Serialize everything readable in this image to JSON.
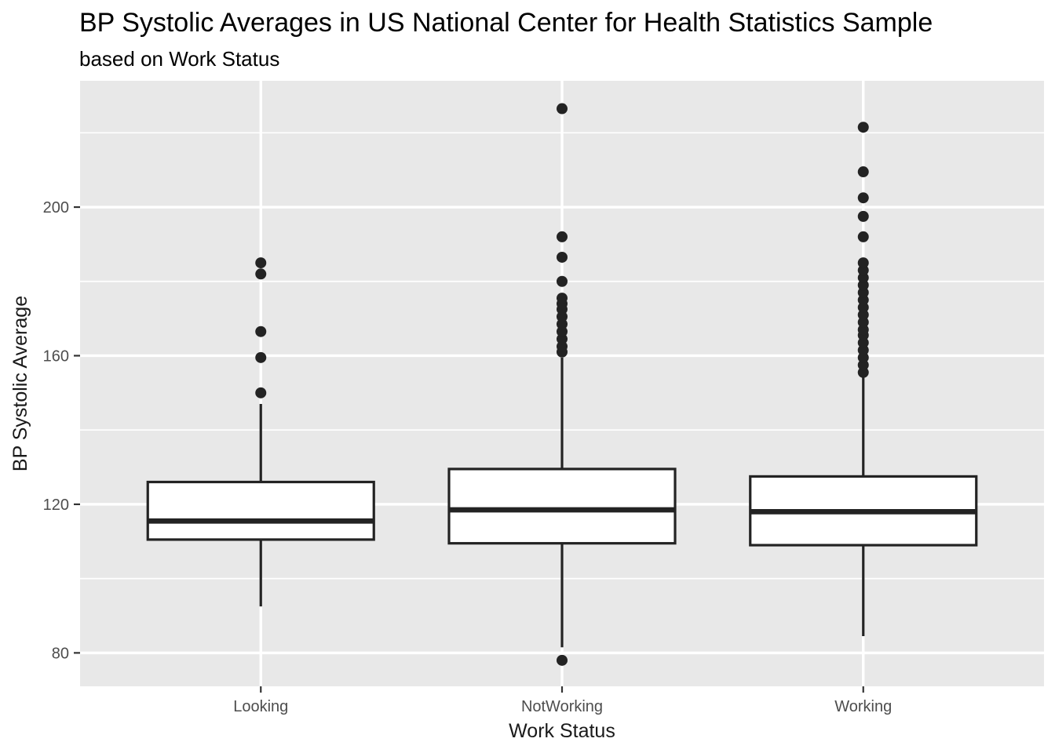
{
  "chart_data": {
    "type": "boxplot",
    "title": "BP Systolic Averages in US National Center for Health Statistics Sample",
    "subtitle": "based on Work Status",
    "xlabel": "Work Status",
    "ylabel": "BP Systolic Average",
    "categories": [
      "Looking",
      "NotWorking",
      "Working"
    ],
    "ylim": [
      71,
      234
    ],
    "y_major_ticks": [
      80,
      120,
      160,
      200
    ],
    "y_minor_gridlines": [
      100,
      140,
      180,
      220
    ],
    "grid": "white major+minor horizontal lines and major vertical lines on grey panel",
    "legend_position": "none",
    "series": [
      {
        "category": "Looking",
        "whisker_low": 92.5,
        "q1": 110.5,
        "median": 115.5,
        "q3": 126,
        "whisker_high": 147,
        "outliers": [
          150,
          159.5,
          166.5,
          182,
          185
        ]
      },
      {
        "category": "NotWorking",
        "whisker_low": 81.5,
        "q1": 109.5,
        "median": 118.5,
        "q3": 129.5,
        "whisker_high": 159.5,
        "outliers": [
          78,
          161,
          162.5,
          164.5,
          166.5,
          168.5,
          170.5,
          172.5,
          174,
          175.5,
          180,
          186.5,
          192,
          226.5
        ]
      },
      {
        "category": "Working",
        "whisker_low": 84.5,
        "q1": 109,
        "median": 118,
        "q3": 127.5,
        "whisker_high": 154.5,
        "outliers": [
          155.5,
          157.5,
          159.5,
          161.5,
          163.5,
          165.5,
          167,
          169,
          171,
          173,
          175,
          177,
          179,
          181,
          183,
          185,
          192,
          197.5,
          202.5,
          209.5,
          221.5
        ]
      }
    ],
    "theme": {
      "panel_background": "#E8E8E8",
      "gridline_color": "#FFFFFF",
      "box_fill": "#FFFFFF",
      "stroke_color": "#232323",
      "point_color": "#232323",
      "title_color": "#000000",
      "axis_title_color": "#1A1A1A",
      "tick_label_color": "#4D4D4D",
      "tick_mark_color": "#333333"
    }
  }
}
